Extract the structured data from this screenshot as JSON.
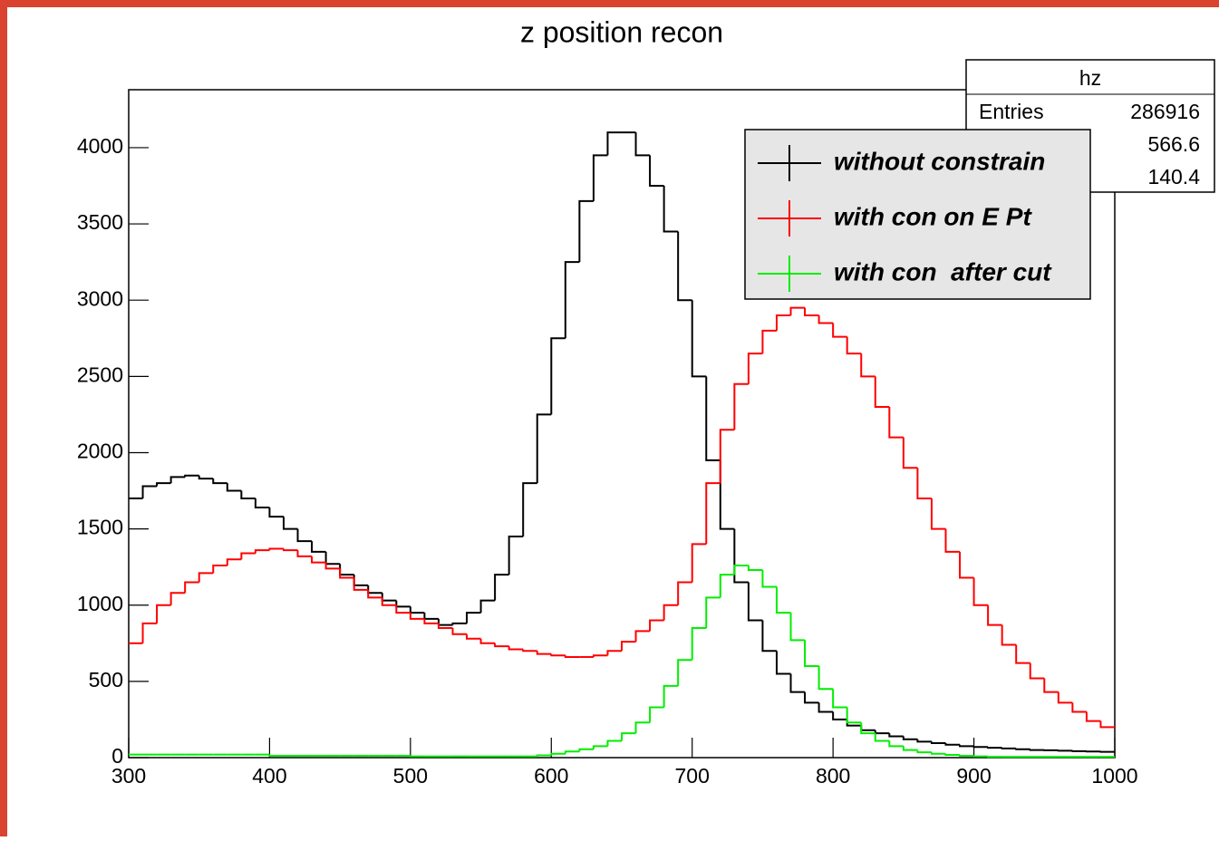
{
  "chart_data": {
    "type": "histogram",
    "title": "z position recon",
    "bins": [
      300,
      310,
      320,
      330,
      340,
      350,
      360,
      370,
      380,
      390,
      400,
      410,
      420,
      430,
      440,
      450,
      460,
      470,
      480,
      490,
      500,
      510,
      520,
      530,
      540,
      550,
      560,
      570,
      580,
      590,
      600,
      610,
      620,
      630,
      640,
      650,
      660,
      670,
      680,
      690,
      700,
      710,
      720,
      730,
      740,
      750,
      760,
      770,
      780,
      790,
      800,
      810,
      820,
      830,
      840,
      850,
      860,
      870,
      880,
      890,
      900,
      910,
      920,
      930,
      940,
      950,
      960,
      970,
      980,
      990,
      1000
    ],
    "series": [
      {
        "name": "without constrain",
        "color": "#000000",
        "values": [
          1700,
          1780,
          1800,
          1840,
          1850,
          1830,
          1800,
          1750,
          1700,
          1640,
          1580,
          1500,
          1420,
          1350,
          1270,
          1200,
          1130,
          1080,
          1030,
          990,
          950,
          910,
          870,
          880,
          950,
          1030,
          1200,
          1450,
          1800,
          2250,
          2750,
          3250,
          3650,
          3950,
          4100,
          4100,
          3950,
          3750,
          3450,
          3000,
          2500,
          1950,
          1500,
          1150,
          900,
          700,
          550,
          430,
          360,
          300,
          250,
          210,
          180,
          160,
          140,
          120,
          105,
          95,
          85,
          75,
          70,
          65,
          60,
          55,
          50,
          48,
          45,
          42,
          40,
          38
        ]
      },
      {
        "name": "with con on E Pt",
        "color": "#ff0000",
        "values": [
          750,
          880,
          1000,
          1080,
          1150,
          1210,
          1260,
          1300,
          1340,
          1360,
          1370,
          1360,
          1320,
          1280,
          1240,
          1180,
          1100,
          1050,
          1000,
          950,
          910,
          880,
          850,
          810,
          780,
          750,
          730,
          710,
          700,
          680,
          670,
          660,
          660,
          670,
          700,
          760,
          830,
          900,
          1000,
          1150,
          1400,
          1800,
          2150,
          2450,
          2650,
          2800,
          2900,
          2950,
          2900,
          2850,
          2760,
          2650,
          2500,
          2300,
          2100,
          1900,
          1700,
          1500,
          1350,
          1180,
          1000,
          870,
          740,
          620,
          520,
          430,
          360,
          300,
          240,
          200
        ]
      },
      {
        "name": "with con  after cut",
        "color": "#00ee00",
        "values": [
          20,
          20,
          20,
          20,
          20,
          20,
          20,
          20,
          20,
          20,
          12,
          12,
          12,
          12,
          12,
          12,
          12,
          12,
          12,
          12,
          8,
          8,
          8,
          8,
          8,
          8,
          8,
          8,
          8,
          15,
          25,
          40,
          55,
          75,
          110,
          160,
          230,
          330,
          470,
          640,
          850,
          1050,
          1200,
          1260,
          1230,
          1120,
          950,
          770,
          600,
          450,
          330,
          230,
          160,
          110,
          75,
          50,
          35,
          25,
          18,
          12,
          8,
          5,
          5,
          5,
          5,
          5,
          5,
          5,
          5,
          5
        ]
      }
    ],
    "xlim": [
      300,
      1000
    ],
    "ylim": [
      0,
      4380
    ],
    "xticks": [
      300,
      400,
      500,
      600,
      700,
      800,
      900,
      1000
    ],
    "yticks": [
      0,
      500,
      1000,
      1500,
      2000,
      2500,
      3000,
      3500,
      4000
    ],
    "legend": "top-right",
    "stats": {
      "name": "hz",
      "entries_label": "Entries",
      "values": [
        286916,
        566.6,
        140.4
      ]
    }
  }
}
